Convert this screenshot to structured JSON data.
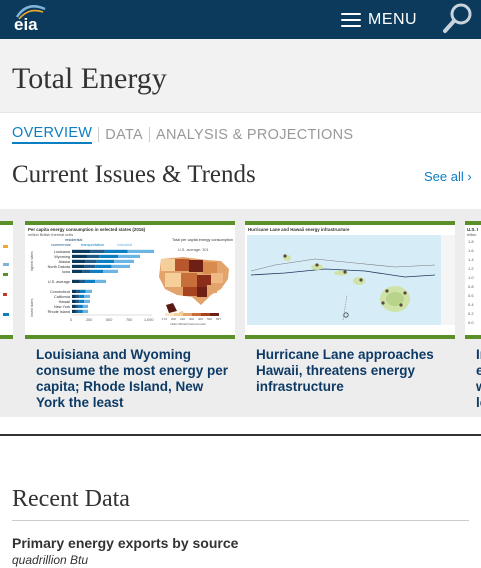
{
  "header": {
    "logo_text": "eia",
    "menu_label": "MENU"
  },
  "page": {
    "title": "Total Energy"
  },
  "tabs": [
    {
      "label": "OVERVIEW",
      "active": true
    },
    {
      "label": "DATA",
      "active": false
    },
    {
      "label": "ANALYSIS & PROJECTIONS",
      "active": false
    }
  ],
  "issues": {
    "title": "Current Issues & Trends",
    "see_all": "See all ›",
    "cards": [
      {
        "title": "Louisiana and Wyoming consume the most energy per capita; Rhode Island, New York the least",
        "thumb": {
          "title": "Per capita energy consumption in selected states (2016)",
          "unit": "million British thermal units",
          "legend": [
            "residential",
            "commercial",
            "transportation",
            "industrial"
          ],
          "states": [
            "Louisiana",
            "Wyoming",
            "Alaska",
            "North Dakota",
            "Iowa",
            "U.S. average",
            "Connecticut",
            "California",
            "Hawaii",
            "New York",
            "Rhode Island"
          ],
          "high_label": "highest states",
          "low_label": "lowest states",
          "axis_ticks": [
            "0",
            "250",
            "500",
            "750",
            "1,000"
          ],
          "map_title": "Total per capita energy consumption",
          "map_avg": "U.S. average: 301",
          "map_scale": [
            "170",
            "200",
            "230",
            "300",
            "400",
            "500",
            "997"
          ],
          "map_unit": "million British thermal units"
        }
      },
      {
        "title": "Hurricane Lane approaches Hawaii, threatens energy infrastructure",
        "thumb": {
          "title": "Hurricane Lane and Hawaii energy infrastructure"
        }
      },
      {
        "title": "In e w le",
        "thumb": {
          "title": "U.S. t",
          "subtitle": "trillion",
          "ticks": [
            "1.8",
            "1.6",
            "1.4",
            "1.2",
            "1.0",
            "0.8",
            "0.6",
            "0.4",
            "0.2",
            "0.0"
          ]
        }
      }
    ]
  },
  "recent": {
    "title": "Recent Data",
    "dataset_title": "Primary energy exports by source",
    "units": "quadrillion Btu"
  },
  "colors": {
    "header_bg": "#0b3a5c",
    "accent_blue": "#0c7fc3",
    "card_border_green": "#5a8f2a",
    "card_title": "#0d3b66"
  }
}
